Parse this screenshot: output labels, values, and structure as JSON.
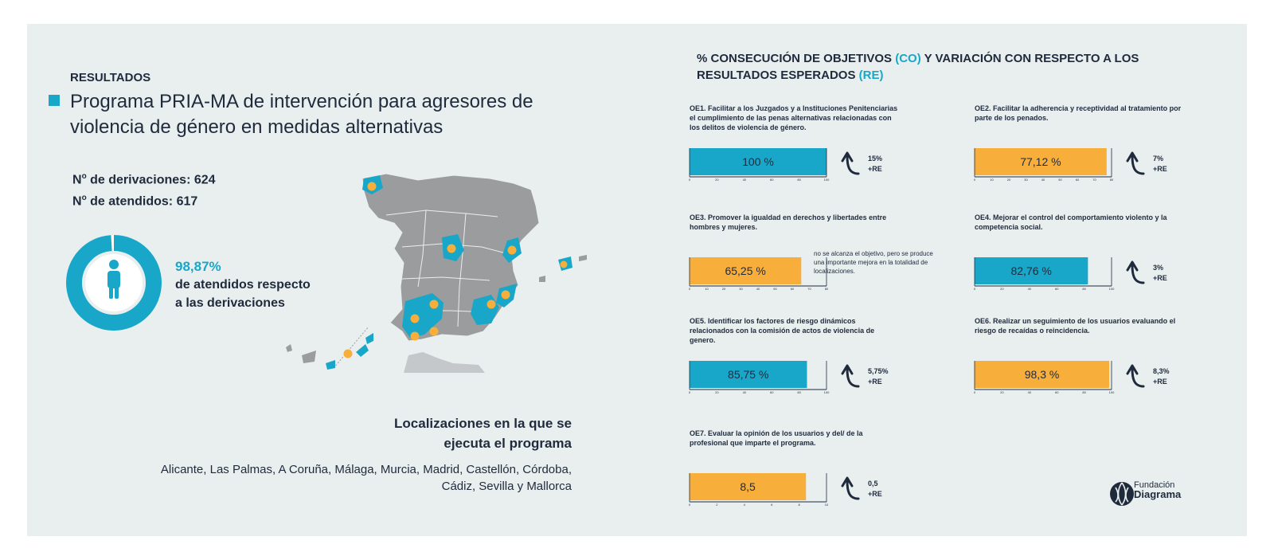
{
  "header": {
    "section_label": "RESULTADOS",
    "title": "Programa PRIA-MA de intervención para agresores de violencia de género en medidas alternativas"
  },
  "stats": {
    "derivaciones_label": "de derivaciones: 624",
    "atendidos_label": "de atendidos: 617",
    "number_prefix": "N",
    "number_sup": "o"
  },
  "attendance": {
    "percent_text": "98,87%",
    "percent_value": 98.87,
    "line1": "de atendidos respecto",
    "line2": "a las derivaciones"
  },
  "locations": {
    "heading_line1": "Localizaciones en la que se",
    "heading_line2": "ejecuta el programa",
    "list_line1": "Alicante, Las Palmas, A Coruña, Málaga, Murcia, Madrid, Castellón, Córdoba,",
    "list_line2": "Cádiz, Sevilla y Mallorca"
  },
  "charts_header": {
    "line1_pre": "% CONSECUCIÓN DE OBJETIVOS ",
    "line1_acc": "(CO)",
    "line1_post": " Y VARIACIÓN CON RESPECTO A LOS",
    "line2_pre": "RESULTADOS ESPERADOS ",
    "line2_acc": "(RE)"
  },
  "colors": {
    "accent": "#18a7c9",
    "orange": "#f7ae3a",
    "dark": "#1f2a3c",
    "map_gray": "#9a9c9e",
    "background": "#e9efef"
  },
  "chart_data": [
    {
      "id": "OE1",
      "type": "bar",
      "title": "OE1. Facilitar a los Juzgados y a Instituciones Penitenciarias el cumplimiento de las penas alternativas relacionadas con los delitos de violencia de género.",
      "value": 100,
      "label": "100 %",
      "ylim": [
        0,
        100
      ],
      "ticks": [
        "0",
        "20",
        "40",
        "60",
        "80",
        "100"
      ],
      "color": "#18a7c9",
      "re_line1": "15%",
      "re_line2": "+RE"
    },
    {
      "id": "OE2",
      "type": "bar",
      "title": "OE2. Facilitar la adherencia y receptividad al tratamiento por parte de los penados.",
      "value": 77.12,
      "label": "77,12 %",
      "ylim": [
        0,
        80
      ],
      "ticks": [
        "0",
        "10",
        "20",
        "30",
        "40",
        "50",
        "60",
        "70",
        "80"
      ],
      "color": "#f7ae3a",
      "re_line1": "7%",
      "re_line2": "+RE"
    },
    {
      "id": "OE3",
      "type": "bar",
      "title": "OE3. Promover la igualdad en derechos y libertades entre hombres y mujeres.",
      "value": 65.25,
      "label": "65,25 %",
      "ylim": [
        0,
        80
      ],
      "ticks": [
        "0",
        "10",
        "20",
        "30",
        "40",
        "50",
        "60",
        "70",
        "80"
      ],
      "color": "#f7ae3a",
      "note": "no se alcanza el objetivo, pero se produce una importante mejora en la totalidad de localizaciones."
    },
    {
      "id": "OE4",
      "type": "bar",
      "title": "OE4. Mejorar el control del comportamiento violento y la competencia social.",
      "value": 82.76,
      "label": "82,76 %",
      "ylim": [
        0,
        100
      ],
      "ticks": [
        "0",
        "20",
        "40",
        "60",
        "80",
        "100"
      ],
      "color": "#18a7c9",
      "re_line1": "3%",
      "re_line2": "+RE"
    },
    {
      "id": "OE5",
      "type": "bar",
      "title": "OE5. Identificar los factores de riesgo dinámicos relacionados con la comisión de actos de violencia de genero.",
      "value": 85.75,
      "label": "85,75 %",
      "ylim": [
        0,
        100
      ],
      "ticks": [
        "0",
        "20",
        "40",
        "60",
        "80",
        "100"
      ],
      "color": "#18a7c9",
      "re_line1": "5,75%",
      "re_line2": "+RE"
    },
    {
      "id": "OE6",
      "type": "bar",
      "title": "OE6. Realizar un seguimiento de los usuarios evaluando el riesgo de recaídas o reincidencia.",
      "value": 98.3,
      "label": "98,3 %",
      "ylim": [
        0,
        100
      ],
      "ticks": [
        "0",
        "20",
        "40",
        "60",
        "80",
        "100"
      ],
      "color": "#f7ae3a",
      "re_line1": "8,3%",
      "re_line2": "+RE"
    },
    {
      "id": "OE7",
      "type": "bar",
      "title": "OE7. Evaluar la opinión de los usuarios y del/ de la profesional que imparte el programa.",
      "value": 8.5,
      "label": "8,5",
      "ylim": [
        0,
        10
      ],
      "ticks": [
        "0",
        "2",
        "4",
        "6",
        "8",
        "10"
      ],
      "color": "#f7ae3a",
      "re_line1": "0,5",
      "re_line2": "+RE"
    }
  ],
  "logo": {
    "line1": "Fundación",
    "line2": "Diagrama"
  }
}
